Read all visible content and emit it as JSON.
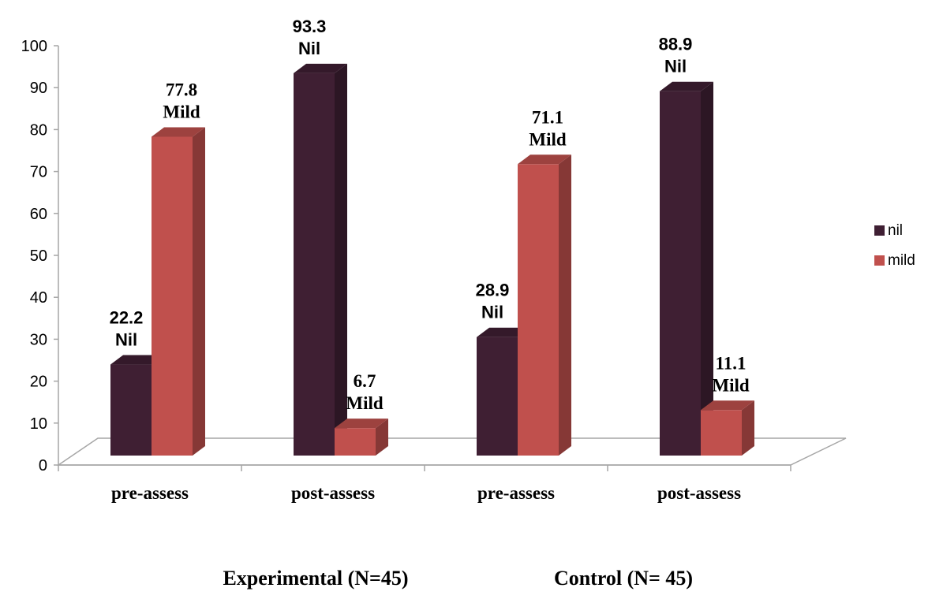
{
  "chart_data": {
    "type": "bar",
    "categories": [
      "pre-assess",
      "post-assess",
      "pre-assess",
      "post-assess"
    ],
    "groups": [
      "Experimental (N=45)",
      "Control (N= 45)"
    ],
    "series": [
      {
        "name": "nil",
        "color": "#3f1f33",
        "values": [
          22.2,
          93.3,
          28.9,
          88.9
        ],
        "labels": [
          "22.2",
          "93.3",
          "28.9",
          "88.9"
        ],
        "sublabels": [
          "Nil",
          "Nil",
          "Nil",
          "Nil"
        ]
      },
      {
        "name": "mild",
        "color": "#c0504d",
        "values": [
          77.8,
          6.7,
          71.1,
          11.1
        ],
        "labels": [
          "77.8",
          "6.7",
          "71.1",
          "11.1"
        ],
        "sublabels": [
          "Mild",
          "Mild",
          "Mild",
          "Mild"
        ]
      }
    ],
    "yticks": [
      "0",
      "10",
      "20",
      "30",
      "40",
      "50",
      "60",
      "70",
      "80",
      "90",
      "100"
    ],
    "ylim": [
      0,
      100
    ],
    "legend_position": "right",
    "three_d": true
  }
}
